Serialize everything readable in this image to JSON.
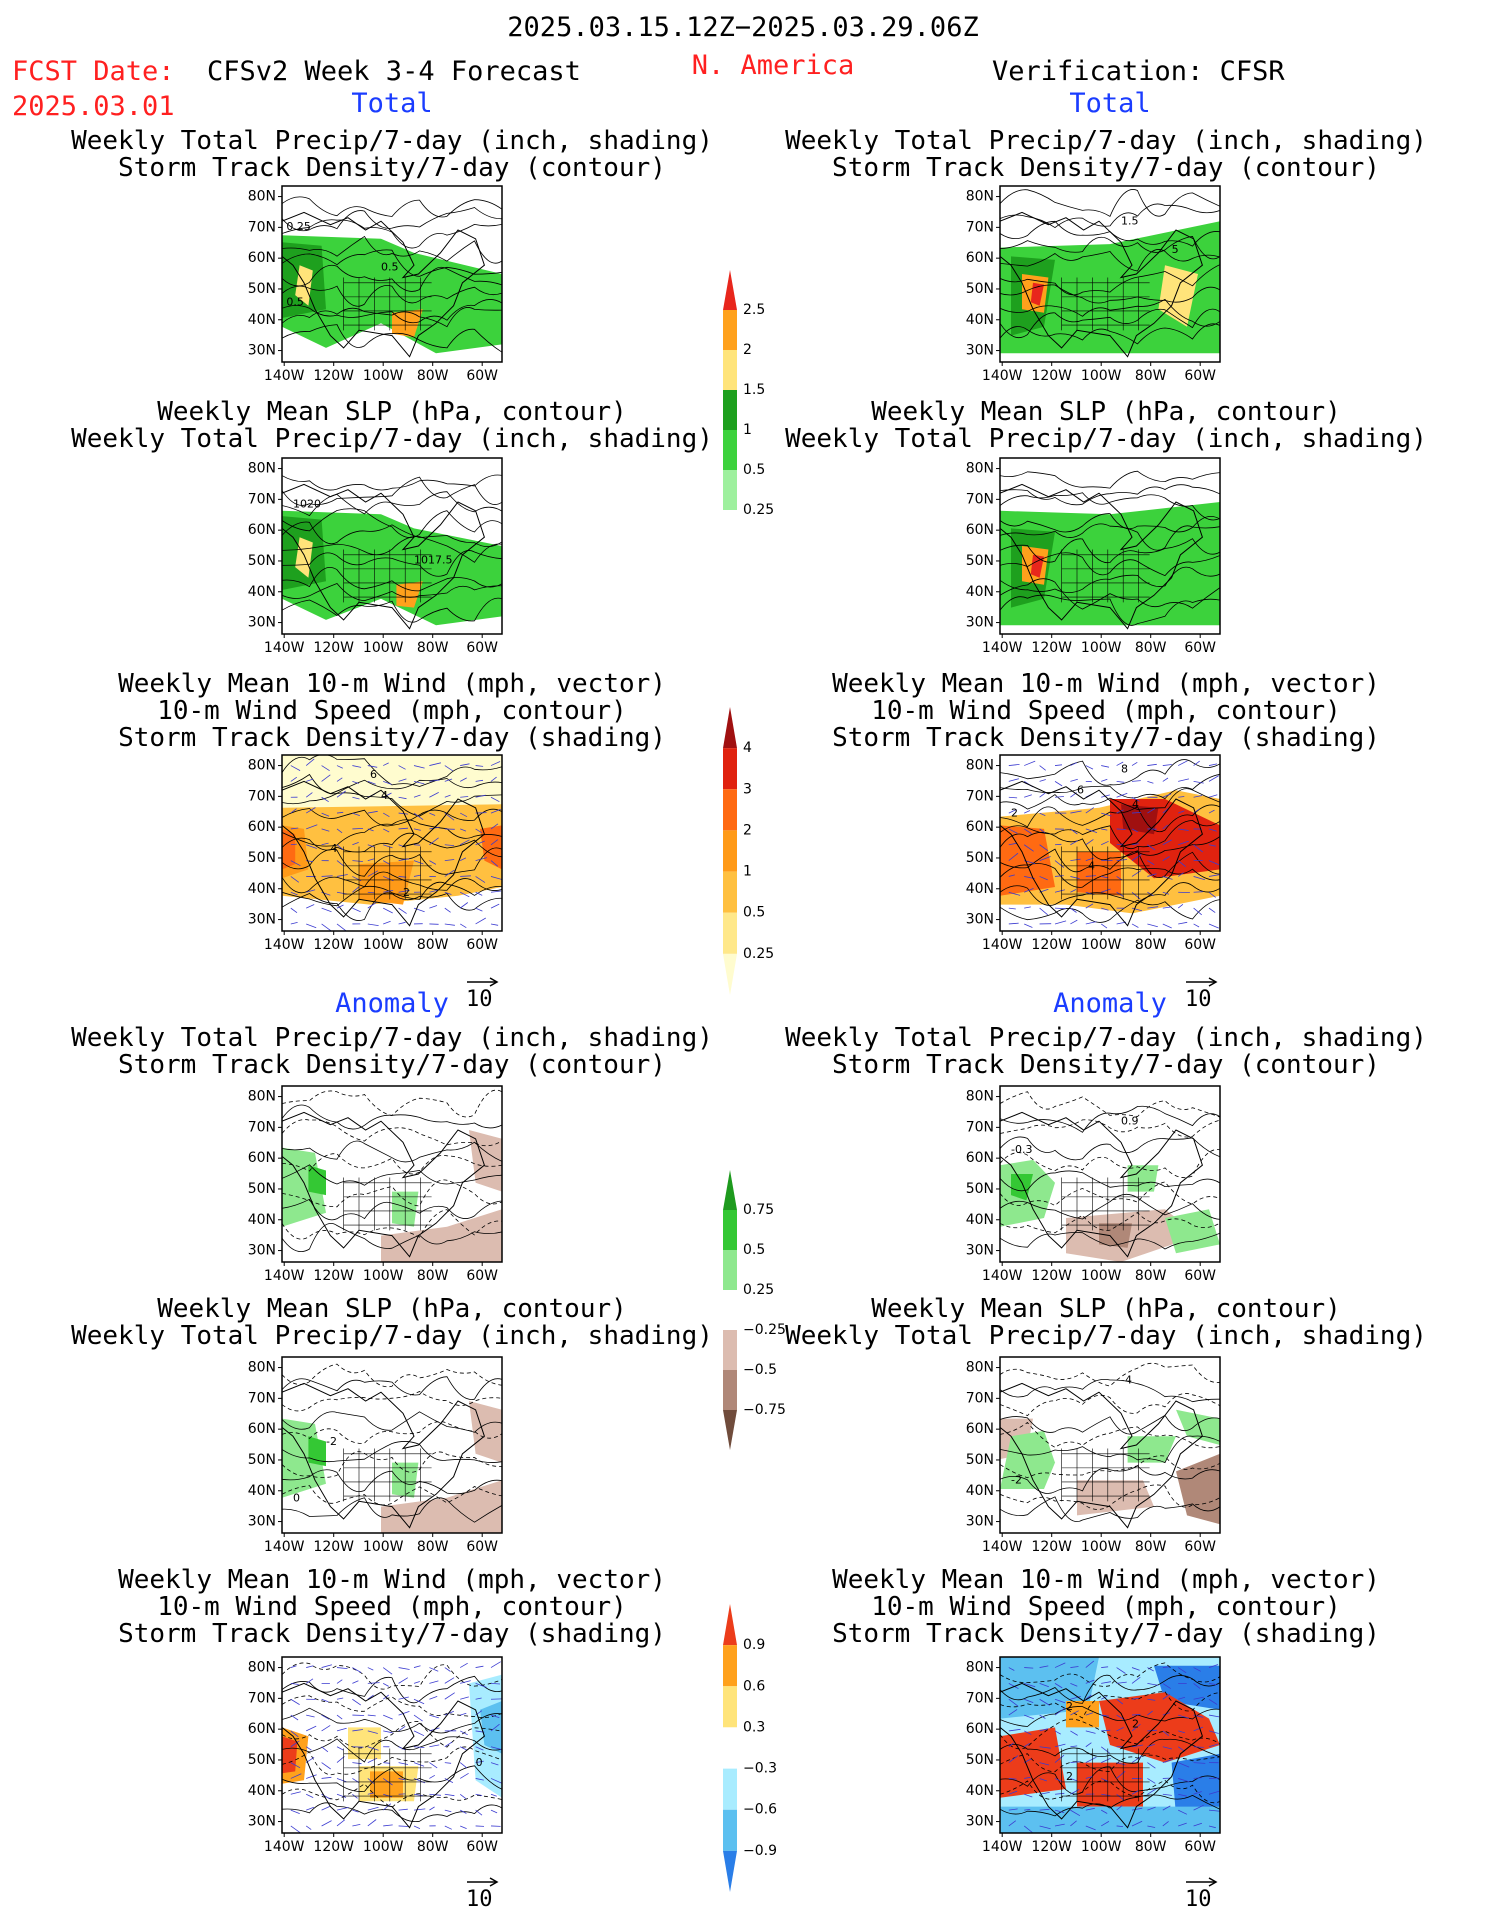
{
  "header": {
    "period": "2025.03.15.12Z−2025.03.29.06Z",
    "region": "N. America",
    "fcst_label": "FCST Date:",
    "fcst_date": "2025.03.01",
    "model": "CFSv2 Week 3-4 Forecast",
    "verification": "Verification: CFSR"
  },
  "sections": {
    "total_left": "Total",
    "total_right": "Total",
    "anom_left": "Anomaly",
    "anom_right": "Anomaly"
  },
  "panel_titles": {
    "precip_storm": [
      "Weekly Total Precip/7-day (inch, shading)",
      "Storm Track Density/7-day (contour)"
    ],
    "slp_precip": [
      "Weekly Mean SLP (hPa, contour)",
      "Weekly Total Precip/7-day (inch, shading)"
    ],
    "wind_storm": [
      "Weekly Mean 10-m Wind (mph, vector)",
      "10-m Wind Speed (mph, contour)",
      "Storm Track Density/7-day (shading)"
    ]
  },
  "axes": {
    "lat_ticks": [
      "80N",
      "70N",
      "60N",
      "50N",
      "40N",
      "30N"
    ],
    "lon_ticks": [
      "140W",
      "120W",
      "100W",
      "80W",
      "60W"
    ]
  },
  "vector_ref": "10",
  "colorbars": {
    "precip_total": {
      "labels": [
        "2.5",
        "2",
        "1.5",
        "1",
        "0.5",
        "0.25"
      ],
      "colors": [
        "#e8261c",
        "#ffa11c",
        "#ffe47a",
        "#1ea01e",
        "#3cd23c",
        "#9ef09e",
        "#ffffff"
      ]
    },
    "storm_total": {
      "labels": [
        "4",
        "3",
        "2",
        "1",
        "0.5",
        "0.25"
      ],
      "colors": [
        "#a01010",
        "#e0220f",
        "#ff6a12",
        "#ff9a18",
        "#ffc040",
        "#ffe88a",
        "#fffccf"
      ]
    },
    "precip_anom": {
      "labels": [
        "0.75",
        "0.5",
        "0.25",
        "−0.25",
        "−0.5",
        "−0.75"
      ],
      "colors": [
        "#1e9a1e",
        "#34c834",
        "#8ee88e",
        "#ffffff",
        "#dcbcb0",
        "#b08878",
        "#704c3c"
      ]
    },
    "storm_anom": {
      "labels": [
        "0.9",
        "0.6",
        "0.3",
        "−0.3",
        "−0.6",
        "−0.9"
      ],
      "colors": [
        "#ec3c1a",
        "#ffa11c",
        "#ffe47a",
        "#ffffff",
        "#a8ecff",
        "#5cc0f0",
        "#2a7ee8"
      ]
    }
  },
  "contour_labels": {
    "p1": [
      "0.25",
      "0.5",
      "0.5"
    ],
    "p2": [
      "1020",
      "1017.5"
    ],
    "p3": [
      "6",
      "4",
      "4",
      "2"
    ],
    "r1": [
      "1.5",
      "5"
    ],
    "r3": [
      "8",
      "6",
      "4",
      "4",
      "2"
    ],
    "a1": [],
    "ar1": [
      "0.9",
      "-0.3"
    ],
    "a2": [
      "-2",
      "0"
    ],
    "ar2": [
      "-4",
      "-2"
    ],
    "a3": [
      "0"
    ],
    "ar3": [
      "2",
      "2",
      "2"
    ]
  }
}
